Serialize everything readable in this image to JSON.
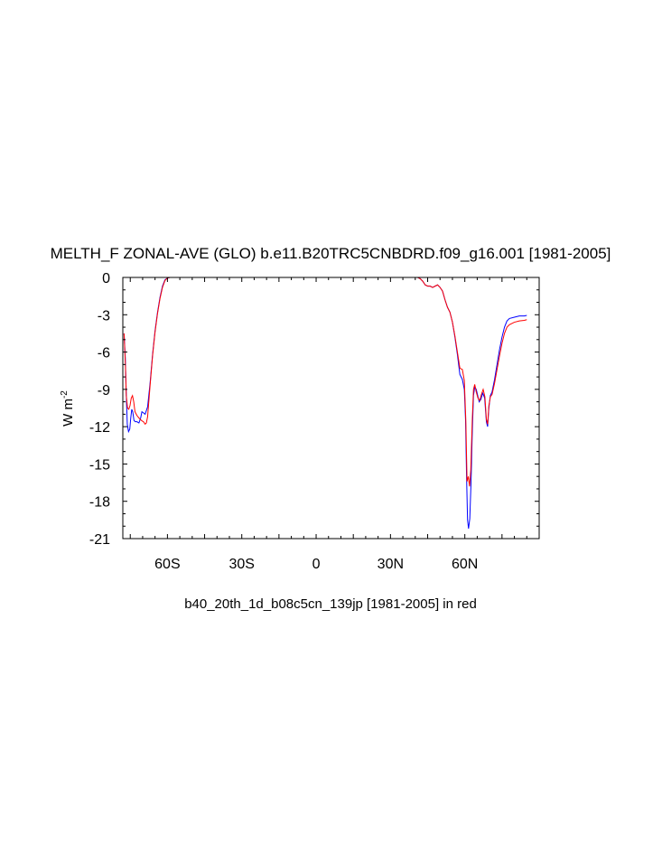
{
  "chart_data": {
    "type": "line",
    "title": "MELTH_F ZONAL-AVE (GLO) b.e11.B20TRC5CNBDRD.f09_g16.001 [1981-2005]",
    "xlabel": "b40_20th_1d_b08c5cn_139jp [1981-2005] in red",
    "ylabel": "W m",
    "ylabel_superscript": "-2",
    "xlim": [
      -78,
      90
    ],
    "ylim": [
      -21,
      0
    ],
    "x_ticks": [
      {
        "value": -60,
        "label": "60S"
      },
      {
        "value": -30,
        "label": "30S"
      },
      {
        "value": 0,
        "label": "0"
      },
      {
        "value": 30,
        "label": "30N"
      },
      {
        "value": 60,
        "label": "60N"
      }
    ],
    "y_ticks": [
      {
        "value": 0,
        "label": "0"
      },
      {
        "value": -3,
        "label": "-3"
      },
      {
        "value": -6,
        "label": "-6"
      },
      {
        "value": -9,
        "label": "-9"
      },
      {
        "value": -12,
        "label": "-12"
      },
      {
        "value": -15,
        "label": "-15"
      },
      {
        "value": -18,
        "label": "-18"
      },
      {
        "value": -21,
        "label": "-21"
      }
    ],
    "series": [
      {
        "color": "#0000ff",
        "points": [
          [
            -77.5,
            -4.5
          ],
          [
            -77,
            -6.5
          ],
          [
            -76.6,
            -9.5
          ],
          [
            -76.2,
            -11.8
          ],
          [
            -75.7,
            -12.4
          ],
          [
            -75.2,
            -12.2
          ],
          [
            -74.8,
            -11.3
          ],
          [
            -74.4,
            -10.6
          ],
          [
            -74,
            -10.8
          ],
          [
            -73.5,
            -11.5
          ],
          [
            -73,
            -11.6
          ],
          [
            -72.3,
            -11.6
          ],
          [
            -71.5,
            -11.7
          ],
          [
            -70.8,
            -11.3
          ],
          [
            -70.3,
            -10.8
          ],
          [
            -69.6,
            -10.9
          ],
          [
            -69,
            -11
          ],
          [
            -68,
            -10.4
          ],
          [
            -67,
            -8.5
          ],
          [
            -66,
            -6.2
          ],
          [
            -65,
            -4.3
          ],
          [
            -64,
            -2.8
          ],
          [
            -63,
            -1.6
          ],
          [
            -62,
            -0.7
          ],
          [
            -61,
            -0.2
          ],
          [
            -60,
            -0.05
          ],
          [
            -59,
            0
          ],
          [
            -55,
            0
          ],
          [
            40,
            0
          ],
          [
            41,
            0
          ],
          [
            42,
            -0.1
          ],
          [
            43,
            -0.3
          ],
          [
            44,
            -0.6
          ],
          [
            45,
            -0.7
          ],
          [
            46,
            -0.7
          ],
          [
            47,
            -0.8
          ],
          [
            48,
            -0.7
          ],
          [
            49,
            -0.6
          ],
          [
            50,
            -0.8
          ],
          [
            51,
            -1.1
          ],
          [
            52,
            -1.8
          ],
          [
            53,
            -2.4
          ],
          [
            54,
            -2.8
          ],
          [
            55,
            -3.6
          ],
          [
            56,
            -4.8
          ],
          [
            57,
            -6.2
          ],
          [
            58,
            -7.8
          ],
          [
            59,
            -8.2
          ],
          [
            59.8,
            -9
          ],
          [
            60.3,
            -11.5
          ],
          [
            60.7,
            -16
          ],
          [
            61.1,
            -19.5
          ],
          [
            61.5,
            -20.2
          ],
          [
            62,
            -19.4
          ],
          [
            62.5,
            -16.5
          ],
          [
            63,
            -12.5
          ],
          [
            63.5,
            -9.5
          ],
          [
            64,
            -8.8
          ],
          [
            64.6,
            -9
          ],
          [
            65.2,
            -9.5
          ],
          [
            65.8,
            -10
          ],
          [
            66.5,
            -9.8
          ],
          [
            67.2,
            -9.3
          ],
          [
            68,
            -9.7
          ],
          [
            68.7,
            -11.6
          ],
          [
            69.2,
            -12
          ],
          [
            69.7,
            -10.5
          ],
          [
            70.3,
            -9.5
          ],
          [
            71,
            -9.2
          ],
          [
            72,
            -8.2
          ],
          [
            73,
            -7
          ],
          [
            74,
            -5.8
          ],
          [
            75,
            -4.8
          ],
          [
            76,
            -4
          ],
          [
            77,
            -3.5
          ],
          [
            78,
            -3.3
          ],
          [
            80,
            -3.2
          ],
          [
            82,
            -3.1
          ],
          [
            84,
            -3.1
          ],
          [
            85,
            -3.05
          ]
        ]
      },
      {
        "color": "#ff0000",
        "points": [
          [
            -77.5,
            -4.5
          ],
          [
            -77,
            -6.8
          ],
          [
            -76.6,
            -9.5
          ],
          [
            -76.1,
            -10.5
          ],
          [
            -75.6,
            -10.6
          ],
          [
            -75.1,
            -10.3
          ],
          [
            -74.6,
            -9.7
          ],
          [
            -74.1,
            -9.5
          ],
          [
            -73.6,
            -10
          ],
          [
            -73.1,
            -10.8
          ],
          [
            -72.3,
            -11.1
          ],
          [
            -71.5,
            -11.3
          ],
          [
            -70.5,
            -11.5
          ],
          [
            -69.7,
            -11.6
          ],
          [
            -69,
            -11.8
          ],
          [
            -68.5,
            -11.7
          ],
          [
            -68,
            -11.2
          ],
          [
            -67,
            -8.7
          ],
          [
            -66,
            -6.3
          ],
          [
            -65,
            -4.4
          ],
          [
            -64,
            -2.9
          ],
          [
            -63,
            -1.7
          ],
          [
            -62,
            -0.8
          ],
          [
            -61,
            -0.25
          ],
          [
            -60,
            -0.05
          ],
          [
            -59,
            0
          ],
          [
            -55,
            0
          ],
          [
            40,
            0
          ],
          [
            41,
            0
          ],
          [
            42,
            -0.1
          ],
          [
            43,
            -0.3
          ],
          [
            44,
            -0.6
          ],
          [
            45,
            -0.7
          ],
          [
            46,
            -0.7
          ],
          [
            47,
            -0.8
          ],
          [
            48,
            -0.7
          ],
          [
            49,
            -0.6
          ],
          [
            50,
            -0.8
          ],
          [
            51,
            -1.1
          ],
          [
            52,
            -1.8
          ],
          [
            53,
            -2.4
          ],
          [
            54,
            -2.8
          ],
          [
            55,
            -3.6
          ],
          [
            56,
            -4.7
          ],
          [
            57,
            -6
          ],
          [
            58,
            -7.3
          ],
          [
            59,
            -7.4
          ],
          [
            59.8,
            -8.3
          ],
          [
            60.4,
            -11.5
          ],
          [
            60.9,
            -16.4
          ],
          [
            61.4,
            -16
          ],
          [
            61.9,
            -16.8
          ],
          [
            62.4,
            -15.5
          ],
          [
            63,
            -11.5
          ],
          [
            63.5,
            -9
          ],
          [
            64,
            -8.6
          ],
          [
            64.6,
            -9.2
          ],
          [
            65.3,
            -9.7
          ],
          [
            66,
            -9.9
          ],
          [
            66.7,
            -9.4
          ],
          [
            67.4,
            -9
          ],
          [
            68.1,
            -9.6
          ],
          [
            68.7,
            -11.4
          ],
          [
            69.2,
            -11.8
          ],
          [
            69.7,
            -10.3
          ],
          [
            70.3,
            -9.6
          ],
          [
            71,
            -9.4
          ],
          [
            72,
            -8.5
          ],
          [
            73,
            -7.4
          ],
          [
            74,
            -6.3
          ],
          [
            75,
            -5.3
          ],
          [
            76,
            -4.5
          ],
          [
            77,
            -4
          ],
          [
            78,
            -3.8
          ],
          [
            80,
            -3.6
          ],
          [
            82,
            -3.5
          ],
          [
            84,
            -3.45
          ],
          [
            85,
            -3.4
          ]
        ]
      }
    ],
    "grid": false,
    "legend": "none"
  }
}
